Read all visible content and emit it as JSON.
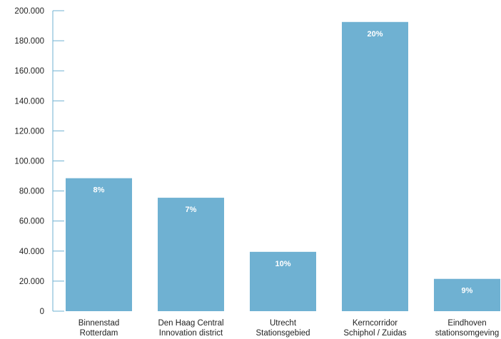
{
  "chart_data": {
    "type": "bar",
    "categories": [
      [
        "Binnenstad",
        "Rotterdam"
      ],
      [
        "Den Haag Central",
        "Innovation district"
      ],
      [
        "Utrecht",
        "Stationsgebied"
      ],
      [
        "Kerncorridor",
        "Schiphol / Zuidas"
      ],
      [
        "Eindhoven",
        "stationsomgeving"
      ]
    ],
    "values": [
      88500,
      75500,
      39500,
      192500,
      21500
    ],
    "data_labels": [
      "8%",
      "7%",
      "10%",
      "20%",
      "9%"
    ],
    "y_ticks": [
      0,
      20000,
      40000,
      60000,
      80000,
      100000,
      120000,
      140000,
      160000,
      180000,
      200000
    ],
    "y_tick_labels": [
      "0",
      "20.000",
      "40.000",
      "60.000",
      "80.000",
      "100.000",
      "120.000",
      "140.000",
      "160.000",
      "180.000",
      "200.000"
    ],
    "ylim": [
      0,
      200000
    ],
    "grid": false,
    "legend": "none",
    "bar_color": "#6fb1d2",
    "axis_color": "#6fb1d2"
  }
}
